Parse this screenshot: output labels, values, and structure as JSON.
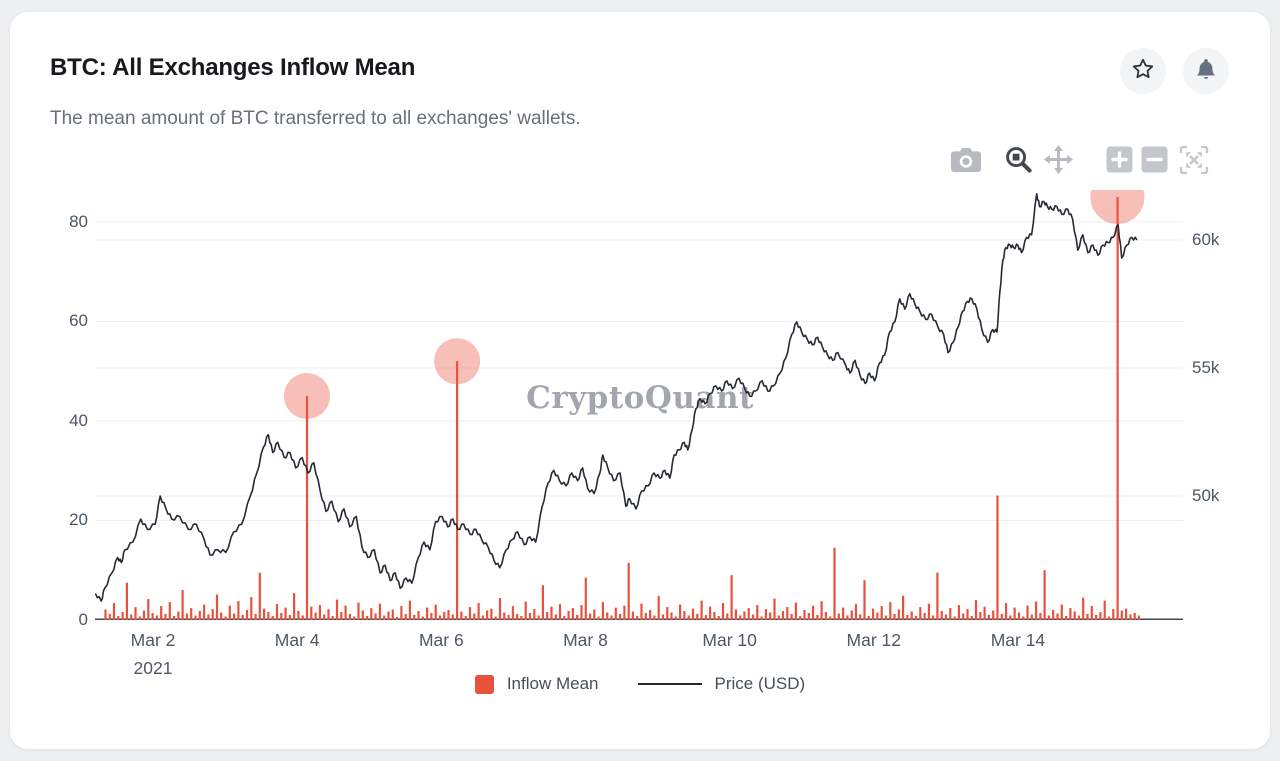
{
  "page": {
    "background": "#edeef0",
    "card_background": "#ffffff"
  },
  "header": {
    "title": "BTC: All Exchanges Inflow Mean",
    "subtitle": "The mean amount of BTC transferred to all exchanges' wallets.",
    "favorite_button": "Add to favorites",
    "alert_button": "Alerts"
  },
  "toolbar": {
    "buttons": [
      {
        "label": "Download plot as a png",
        "icon": "camera-icon",
        "active": false
      },
      {
        "label": "Zoom",
        "icon": "zoom-box-icon",
        "active": true
      },
      {
        "label": "Pan",
        "icon": "pan-icon",
        "active": false
      },
      {
        "label": "Zoom in",
        "icon": "plus-square-icon",
        "active": false
      },
      {
        "label": "Zoom out",
        "icon": "minus-square-icon",
        "active": false
      },
      {
        "label": "Autoscale",
        "icon": "autoscale-icon",
        "active": false
      }
    ]
  },
  "watermark": "CryptoQuant",
  "legend": [
    {
      "label": "Inflow Mean",
      "swatch": "square",
      "color": "#e8513c"
    },
    {
      "label": "Price (USD)",
      "swatch": "line",
      "color": "#252a32"
    }
  ],
  "chart_data": {
    "type": "bar",
    "title": "BTC: All Exchanges Inflow Mean",
    "style": {
      "grid_color": "#ededef",
      "axis_line_color": "#444a52",
      "highlight_color": "rgba(233,86,66,0.38)"
    },
    "x_axis": {
      "unit": "March 2021, day of month",
      "domain": [
        1.195,
        16.29
      ],
      "tick_days": [
        2,
        4,
        6,
        8,
        10,
        12,
        14
      ],
      "tick_labels": [
        "Mar 2",
        "Mar 4",
        "Mar 6",
        "Mar 8",
        "Mar 10",
        "Mar 12",
        "Mar 14"
      ],
      "year_label": "2021"
    },
    "left_axis": {
      "series": "Inflow Mean (BTC)",
      "ticks": [
        0,
        20,
        40,
        60,
        80
      ],
      "range": [
        0,
        86.4
      ]
    },
    "right_axis": {
      "series": "Price (USD)",
      "ticks": [
        50,
        55,
        60
      ],
      "tick_labels": [
        "50k",
        "55k",
        "60k"
      ],
      "range": [
        45.16,
        61.95
      ]
    },
    "highlights": [
      {
        "day": 4.136,
        "value": 45,
        "radius": 23
      },
      {
        "day": 6.219,
        "value": 52,
        "radius": 23
      },
      {
        "day": 15.38,
        "value": 85,
        "radius": 27
      }
    ],
    "series": [
      {
        "name": "Inflow Mean",
        "type": "bar",
        "color": "#e8513c",
        "t0": 1.34,
        "dt": 0.0595,
        "values": [
          2.1,
          1.2,
          3.4,
          0.8,
          1.6,
          7.5,
          1.1,
          2.6,
          0.7,
          1.9,
          4.2,
          1.4,
          0.9,
          2.8,
          1.2,
          3.6,
          0.8,
          1.7,
          6.0,
          1.3,
          2.4,
          0.9,
          1.8,
          3.1,
          1.1,
          2.2,
          5.1,
          1.5,
          0.7,
          2.9,
          1.3,
          3.8,
          1.0,
          2.0,
          4.6,
          1.2,
          9.5,
          2.3,
          1.6,
          0.8,
          3.2,
          1.4,
          2.5,
          1.0,
          5.4,
          1.8,
          0.9,
          45,
          2.7,
          1.5,
          3.0,
          1.1,
          2.2,
          0.8,
          4.1,
          1.6,
          2.9,
          1.2,
          0.7,
          3.5,
          1.9,
          0.8,
          2.4,
          1.3,
          3.3,
          0.9,
          1.7,
          2.1,
          0.6,
          2.8,
          1.2,
          3.9,
          1.0,
          1.8,
          0.7,
          2.5,
          1.4,
          3.1,
          0.9,
          1.6,
          2.0,
          1.1,
          52,
          1.7,
          0.8,
          2.6,
          1.3,
          3.4,
          0.9,
          1.9,
          2.3,
          0.7,
          4.4,
          1.5,
          1.0,
          2.8,
          1.2,
          0.8,
          3.7,
          1.4,
          2.2,
          0.9,
          7.0,
          1.6,
          2.7,
          1.1,
          3.2,
          0.8,
          1.8,
          2.4,
          1.0,
          3.0,
          8.5,
          1.3,
          2.1,
          0.7,
          3.6,
          1.5,
          0.9,
          2.5,
          1.2,
          2.9,
          11.5,
          1.7,
          0.8,
          3.3,
          1.4,
          2.0,
          0.9,
          4.8,
          1.1,
          2.6,
          1.5,
          0.7,
          3.1,
          1.8,
          0.9,
          2.3,
          1.2,
          3.9,
          1.0,
          2.7,
          1.6,
          0.8,
          3.4,
          1.3,
          9.0,
          2.1,
          0.9,
          1.7,
          2.4,
          1.1,
          3.0,
          0.7,
          2.2,
          1.5,
          4.3,
          0.9,
          1.8,
          2.6,
          1.2,
          3.5,
          0.8,
          2.0,
          1.4,
          2.9,
          1.0,
          3.8,
          1.6,
          0.7,
          14.5,
          1.3,
          2.5,
          0.9,
          1.9,
          3.2,
          1.1,
          8.0,
          0.8,
          2.3,
          1.5,
          2.8,
          0.9,
          3.6,
          1.2,
          2.1,
          4.9,
          1.0,
          1.7,
          0.8,
          2.6,
          1.4,
          3.3,
          0.9,
          9.5,
          1.8,
          1.1,
          2.4,
          0.7,
          3.0,
          1.3,
          2.2,
          0.8,
          4.0,
          1.6,
          2.7,
          1.0,
          1.9,
          25,
          1.2,
          3.4,
          0.9,
          2.5,
          1.5,
          0.7,
          2.9,
          1.1,
          3.7,
          1.4,
          10.0,
          0.9,
          2.0,
          1.3,
          3.1,
          0.8,
          2.4,
          1.7,
          0.9,
          4.5,
          1.2,
          2.8,
          1.0,
          1.6,
          3.9,
          0.7,
          2.2,
          85,
          1.9,
          2.3,
          1.1,
          1.4,
          0.9
        ]
      },
      {
        "name": "Price (USD)",
        "type": "line",
        "color": "#252a32",
        "unit": "thousand USD",
        "points": [
          [
            1.2,
            46.2
          ],
          [
            1.28,
            45.9
          ],
          [
            1.33,
            46.4
          ],
          [
            1.43,
            47.0
          ],
          [
            1.51,
            47.6
          ],
          [
            1.56,
            47.4
          ],
          [
            1.61,
            47.9
          ],
          [
            1.72,
            48.2
          ],
          [
            1.83,
            49.1
          ],
          [
            1.92,
            48.7
          ],
          [
            2.03,
            48.9
          ],
          [
            2.1,
            50.0
          ],
          [
            2.18,
            49.5
          ],
          [
            2.26,
            49.1
          ],
          [
            2.37,
            49.2
          ],
          [
            2.49,
            48.7
          ],
          [
            2.6,
            48.9
          ],
          [
            2.71,
            48.3
          ],
          [
            2.79,
            47.7
          ],
          [
            2.9,
            47.9
          ],
          [
            3.01,
            47.8
          ],
          [
            3.12,
            48.6
          ],
          [
            3.23,
            48.9
          ],
          [
            3.35,
            50.0
          ],
          [
            3.44,
            50.9
          ],
          [
            3.53,
            51.9
          ],
          [
            3.6,
            52.4
          ],
          [
            3.66,
            51.7
          ],
          [
            3.73,
            52.1
          ],
          [
            3.82,
            51.5
          ],
          [
            3.9,
            51.7
          ],
          [
            3.98,
            51.1
          ],
          [
            4.07,
            51.5
          ],
          [
            4.15,
            50.9
          ],
          [
            4.23,
            51.3
          ],
          [
            4.32,
            50.2
          ],
          [
            4.4,
            49.4
          ],
          [
            4.48,
            49.8
          ],
          [
            4.57,
            49.0
          ],
          [
            4.65,
            49.5
          ],
          [
            4.73,
            48.8
          ],
          [
            4.82,
            49.2
          ],
          [
            4.9,
            48.0
          ],
          [
            4.98,
            47.6
          ],
          [
            5.07,
            47.9
          ],
          [
            5.15,
            47.0
          ],
          [
            5.22,
            47.3
          ],
          [
            5.29,
            46.7
          ],
          [
            5.36,
            47.0
          ],
          [
            5.43,
            46.4
          ],
          [
            5.51,
            46.8
          ],
          [
            5.59,
            46.6
          ],
          [
            5.68,
            47.6
          ],
          [
            5.76,
            48.2
          ],
          [
            5.84,
            47.9
          ],
          [
            5.92,
            49.0
          ],
          [
            6.01,
            49.2
          ],
          [
            6.09,
            48.8
          ],
          [
            6.16,
            49.1
          ],
          [
            6.23,
            48.7
          ],
          [
            6.31,
            48.9
          ],
          [
            6.4,
            48.5
          ],
          [
            6.48,
            48.7
          ],
          [
            6.56,
            48.3
          ],
          [
            6.65,
            48.0
          ],
          [
            6.73,
            47.5
          ],
          [
            6.81,
            47.2
          ],
          [
            6.9,
            47.9
          ],
          [
            6.98,
            48.3
          ],
          [
            7.06,
            48.6
          ],
          [
            7.15,
            48.1
          ],
          [
            7.23,
            48.4
          ],
          [
            7.31,
            48.2
          ],
          [
            7.4,
            49.6
          ],
          [
            7.48,
            50.5
          ],
          [
            7.56,
            51.0
          ],
          [
            7.64,
            50.6
          ],
          [
            7.73,
            50.4
          ],
          [
            7.81,
            50.9
          ],
          [
            7.89,
            50.6
          ],
          [
            7.96,
            51.1
          ],
          [
            8.03,
            50.3
          ],
          [
            8.12,
            50.1
          ],
          [
            8.2,
            50.9
          ],
          [
            8.24,
            51.6
          ],
          [
            8.31,
            51.1
          ],
          [
            8.39,
            50.6
          ],
          [
            8.48,
            50.9
          ],
          [
            8.56,
            49.6
          ],
          [
            8.61,
            49.9
          ],
          [
            8.7,
            49.5
          ],
          [
            8.78,
            50.2
          ],
          [
            8.87,
            50.4
          ],
          [
            8.95,
            50.9
          ],
          [
            9.03,
            50.7
          ],
          [
            9.1,
            51.0
          ],
          [
            9.17,
            50.7
          ],
          [
            9.23,
            51.6
          ],
          [
            9.3,
            51.8
          ],
          [
            9.37,
            52.1
          ],
          [
            9.42,
            51.8
          ],
          [
            9.48,
            52.6
          ],
          [
            9.53,
            53.4
          ],
          [
            9.59,
            53.8
          ],
          [
            9.66,
            53.6
          ],
          [
            9.73,
            54.0
          ],
          [
            9.81,
            54.3
          ],
          [
            9.89,
            54.1
          ],
          [
            9.96,
            54.5
          ],
          [
            10.04,
            54.2
          ],
          [
            10.13,
            54.6
          ],
          [
            10.21,
            54.2
          ],
          [
            10.28,
            53.9
          ],
          [
            10.36,
            54.1
          ],
          [
            10.45,
            54.5
          ],
          [
            10.53,
            54.1
          ],
          [
            10.61,
            54.3
          ],
          [
            10.7,
            54.8
          ],
          [
            10.78,
            55.4
          ],
          [
            10.86,
            56.3
          ],
          [
            10.93,
            56.8
          ],
          [
            11.0,
            56.4
          ],
          [
            11.08,
            56.1
          ],
          [
            11.15,
            55.9
          ],
          [
            11.22,
            56.2
          ],
          [
            11.29,
            55.8
          ],
          [
            11.36,
            55.5
          ],
          [
            11.43,
            55.3
          ],
          [
            11.5,
            55.6
          ],
          [
            11.61,
            55.1
          ],
          [
            11.67,
            54.8
          ],
          [
            11.74,
            55.3
          ],
          [
            11.81,
            54.7
          ],
          [
            11.88,
            54.4
          ],
          [
            11.94,
            54.8
          ],
          [
            12.01,
            54.5
          ],
          [
            12.08,
            55.2
          ],
          [
            12.15,
            55.5
          ],
          [
            12.22,
            56.4
          ],
          [
            12.29,
            56.8
          ],
          [
            12.36,
            57.7
          ],
          [
            12.43,
            57.3
          ],
          [
            12.5,
            57.9
          ],
          [
            12.57,
            57.5
          ],
          [
            12.64,
            57.2
          ],
          [
            12.72,
            56.9
          ],
          [
            12.8,
            57.1
          ],
          [
            12.89,
            56.6
          ],
          [
            12.97,
            56.3
          ],
          [
            13.03,
            55.6
          ],
          [
            13.1,
            56.0
          ],
          [
            13.17,
            56.6
          ],
          [
            13.23,
            57.2
          ],
          [
            13.3,
            57.6
          ],
          [
            13.36,
            57.7
          ],
          [
            13.43,
            57.3
          ],
          [
            13.5,
            56.5
          ],
          [
            13.58,
            56.0
          ],
          [
            13.65,
            56.5
          ],
          [
            13.71,
            56.4
          ],
          [
            13.75,
            58.0
          ],
          [
            13.79,
            59.2
          ],
          [
            13.83,
            59.7
          ],
          [
            13.89,
            59.8
          ],
          [
            13.94,
            59.7
          ],
          [
            14.0,
            59.8
          ],
          [
            14.05,
            59.5
          ],
          [
            14.12,
            60.1
          ],
          [
            14.19,
            60.2
          ],
          [
            14.26,
            61.8
          ],
          [
            14.3,
            61.3
          ],
          [
            14.36,
            61.5
          ],
          [
            14.41,
            61.3
          ],
          [
            14.47,
            61.2
          ],
          [
            14.54,
            61.3
          ],
          [
            14.61,
            61.0
          ],
          [
            14.69,
            61.2
          ],
          [
            14.76,
            60.8
          ],
          [
            14.83,
            59.6
          ],
          [
            14.9,
            60.2
          ],
          [
            14.97,
            59.5
          ],
          [
            15.04,
            59.8
          ],
          [
            15.11,
            59.4
          ],
          [
            15.18,
            59.8
          ],
          [
            15.25,
            59.9
          ],
          [
            15.32,
            60.1
          ],
          [
            15.39,
            60.6
          ],
          [
            15.44,
            59.3
          ],
          [
            15.51,
            59.8
          ],
          [
            15.58,
            60.1
          ],
          [
            15.65,
            60.0
          ]
        ]
      }
    ]
  }
}
